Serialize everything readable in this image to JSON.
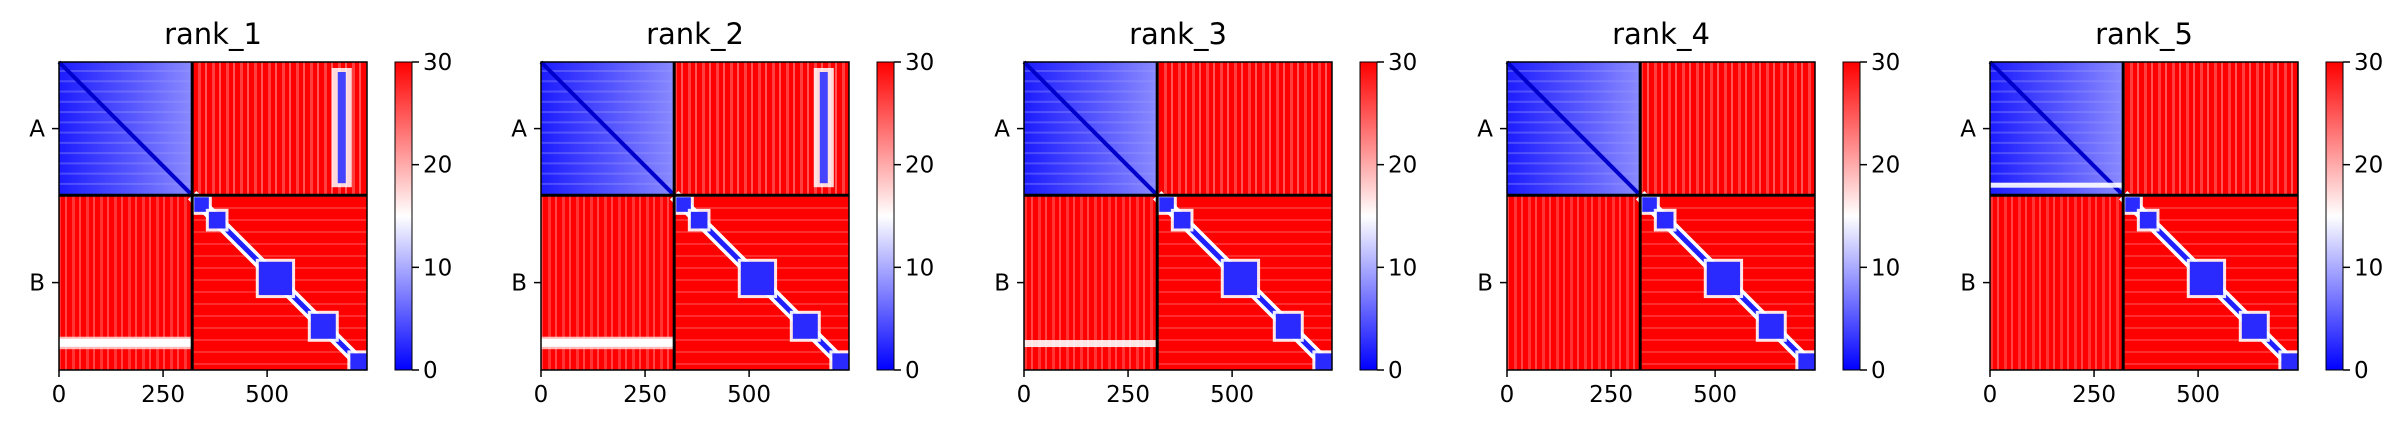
{
  "chart_data": [
    {
      "type": "heatmap",
      "title": "rank_1",
      "x_ticks": [
        0,
        250,
        500
      ],
      "y_tick_labels": [
        "A",
        "B"
      ],
      "chain_boundary": 320,
      "length": 740,
      "colorbar": {
        "min": 0,
        "max": 30,
        "ticks": [
          0,
          10,
          20,
          30
        ],
        "colors": [
          "#0000ff",
          "#ffffff",
          "#ff0000"
        ]
      },
      "notes": {
        "white_band_ab": [
          665,
          688
        ],
        "pale_band_ba_rows": [
          650,
          700
        ]
      }
    },
    {
      "type": "heatmap",
      "title": "rank_2",
      "x_ticks": [
        0,
        250,
        500
      ],
      "y_tick_labels": [
        "A",
        "B"
      ],
      "chain_boundary": 320,
      "length": 740,
      "colorbar": {
        "min": 0,
        "max": 30,
        "ticks": [
          0,
          10,
          20,
          30
        ],
        "colors": [
          "#0000ff",
          "#ffffff",
          "#ff0000"
        ]
      }
    },
    {
      "type": "heatmap",
      "title": "rank_3",
      "x_ticks": [
        0,
        250,
        500
      ],
      "y_tick_labels": [
        "A",
        "B"
      ],
      "chain_boundary": 320,
      "length": 740,
      "colorbar": {
        "min": 0,
        "max": 30,
        "ticks": [
          0,
          10,
          20,
          30
        ],
        "colors": [
          "#0000ff",
          "#ffffff",
          "#ff0000"
        ]
      }
    },
    {
      "type": "heatmap",
      "title": "rank_4",
      "x_ticks": [
        0,
        250,
        500
      ],
      "y_tick_labels": [
        "A",
        "B"
      ],
      "chain_boundary": 320,
      "length": 740,
      "colorbar": {
        "min": 0,
        "max": 30,
        "ticks": [
          0,
          10,
          20,
          30
        ],
        "colors": [
          "#0000ff",
          "#ffffff",
          "#ff0000"
        ]
      }
    },
    {
      "type": "heatmap",
      "title": "rank_5",
      "x_ticks": [
        0,
        250,
        500
      ],
      "y_tick_labels": [
        "A",
        "B"
      ],
      "chain_boundary": 320,
      "length": 740,
      "colorbar": {
        "min": 0,
        "max": 30,
        "ticks": [
          0,
          10,
          20,
          30
        ],
        "colors": [
          "#0000ff",
          "#ffffff",
          "#ff0000"
        ]
      }
    }
  ]
}
